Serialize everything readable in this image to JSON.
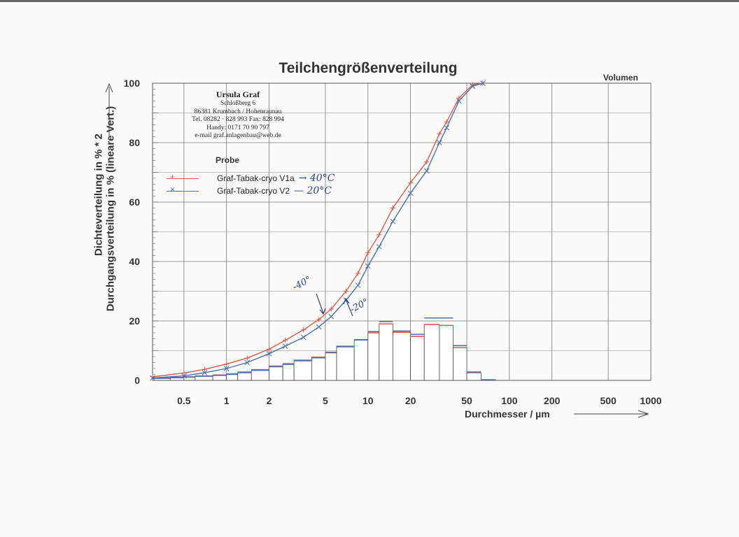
{
  "chart_data": {
    "type": "line",
    "title": "Teilchengrößenverteilung",
    "corner_label": "Volumen",
    "ylabel_lines": [
      "Dichteverteilung in % * 2",
      "Durchgangsverteilung in % (lineare Vert.)"
    ],
    "xlabel": "Durchmesser / µm",
    "xscale": "log",
    "xlim": [
      0.3,
      1000
    ],
    "ylim": [
      0,
      100
    ],
    "x_ticks": [
      "0.5",
      "1",
      "2",
      "5",
      "10",
      "20",
      "50",
      "100",
      "200",
      "500",
      "1000"
    ],
    "x_tick_values": [
      0.5,
      1,
      2,
      5,
      10,
      20,
      50,
      100,
      200,
      500,
      1000
    ],
    "y_ticks": [
      "100",
      "80",
      "60",
      "40",
      "20",
      "0"
    ],
    "y_tick_values": [
      100,
      80,
      60,
      40,
      20,
      0
    ],
    "grid": true,
    "series": [
      {
        "name": "Graf-Tabak-cryo V1a",
        "handwritten_note": "40°C",
        "color": "#e05a4a",
        "marker": "+",
        "cumulative": {
          "x": [
            0.3,
            0.5,
            0.7,
            1.0,
            1.4,
            2.0,
            2.6,
            3.5,
            4.5,
            5.5,
            7.0,
            8.5,
            10,
            12,
            15,
            20,
            26,
            32,
            36,
            44,
            55,
            65
          ],
          "y": [
            1.2,
            2.5,
            3.7,
            5.5,
            7.5,
            10.5,
            13.5,
            17,
            20.5,
            24,
            30,
            36,
            43,
            49,
            58,
            66.5,
            73.5,
            83,
            87,
            95,
            99.5,
            100
          ]
        },
        "density": {
          "edges": [
            0.3,
            0.4,
            0.5,
            0.6,
            0.8,
            1.0,
            1.2,
            1.5,
            2.0,
            2.5,
            3.0,
            4.0,
            5.0,
            6.0,
            8.0,
            10,
            12,
            15,
            20,
            25,
            32,
            40,
            50,
            63,
            80
          ],
          "values": [
            0.8,
            1.0,
            1.2,
            1.5,
            1.8,
            2.2,
            2.8,
            3.6,
            4.8,
            5.6,
            6.8,
            7.8,
            9.5,
            11.5,
            13.7,
            16.0,
            19.0,
            16.2,
            14.8,
            18.8,
            18.5,
            11.0,
            2.6,
            0.2
          ]
        }
      },
      {
        "name": "Graf-Tabak-cryo V2",
        "handwritten_note": "20°C",
        "color": "#4a6fb0",
        "marker": "×",
        "cumulative": {
          "x": [
            0.3,
            0.5,
            0.7,
            1.0,
            1.4,
            2.0,
            2.6,
            3.5,
            4.5,
            5.5,
            7.0,
            8.5,
            10,
            12,
            15,
            20,
            26,
            32,
            36,
            44,
            55,
            65
          ],
          "y": [
            0.8,
            1.5,
            2.6,
            4.0,
            6.0,
            9.0,
            11.5,
            14.5,
            18,
            21.5,
            27,
            32,
            38.5,
            45,
            53.5,
            63,
            70.5,
            80,
            85,
            94,
            99,
            100
          ]
        },
        "density": {
          "edges": [
            0.3,
            0.4,
            0.5,
            0.6,
            0.8,
            1.0,
            1.2,
            1.5,
            2.0,
            2.5,
            3.0,
            4.0,
            5.0,
            6.0,
            8.0,
            10,
            12,
            15,
            20,
            25,
            32,
            40,
            50,
            63,
            80
          ],
          "values": [
            0.7,
            0.9,
            1.1,
            1.4,
            1.7,
            2.0,
            2.6,
            3.4,
            4.6,
            5.4,
            6.6,
            7.6,
            9.3,
            11.3,
            13.6,
            16.4,
            19.8,
            16.6,
            15.5,
            21.0,
            21.0,
            11.7,
            2.8,
            0.2
          ]
        }
      }
    ],
    "annotations": [
      {
        "text": "-40°",
        "series": "Graf-Tabak-cryo V1a"
      },
      {
        "text": "-20°",
        "series": "Graf-Tabak-cryo V2"
      }
    ]
  },
  "header": {
    "company_name": "Ursula Graf",
    "company_lines": [
      "Schloßberg 6",
      "86381 Krumbach / Hohenraunau",
      "Tel. 08282 · 828 993 Fax: 828 994",
      "Handy: 0171 70 90 797",
      "e-mail graf.anlagenbau@web.de"
    ]
  },
  "legend": {
    "title": "Probe",
    "entries": [
      {
        "label": "Graf-Tabak-cryo V1a",
        "note": "→ 40°C"
      },
      {
        "label": "Graf-Tabak-cryo V2",
        "note": "— 20°C"
      }
    ]
  }
}
